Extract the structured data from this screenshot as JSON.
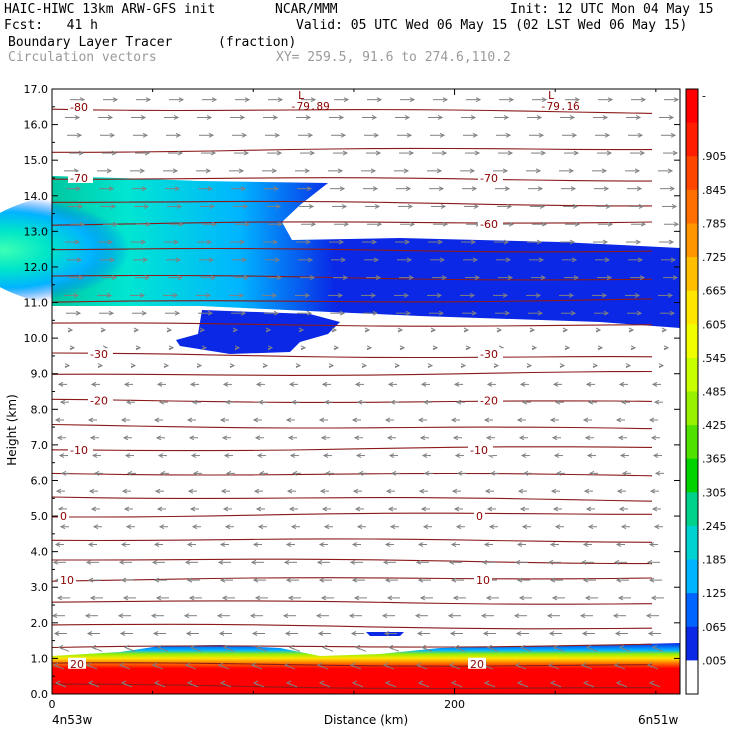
{
  "header": {
    "title": "HAIC-HIWC 13km ARW-GFS init",
    "org": "NCAR/MMM",
    "init": "Init: 12 UTC Mon 04 May 15",
    "fcst": "Fcst:   41 h",
    "valid": "Valid: 05 UTC Wed 06 May 15 (02 LST Wed 06 May 15)",
    "field": "Boundary Layer Tracer",
    "units": "(fraction)",
    "vectors": "Circulation vectors",
    "xy": "XY= 259.5, 91.6 to 274.6,110.2"
  },
  "chart_data": {
    "type": "heatmap",
    "title": "Boundary Layer Tracer",
    "xlabel": "Distance (km)",
    "ylabel": "Height (km)",
    "xlim": [
      0,
      312
    ],
    "ylim": [
      0,
      17
    ],
    "xticks": [
      {
        "value": 0,
        "label": "0"
      },
      {
        "value": 200,
        "label": "200"
      }
    ],
    "x_endpoint_labels": {
      "left": "4n53w",
      "right": "6n51w"
    },
    "yticks": [
      "0.0",
      "1.0",
      "2.0",
      "3.0",
      "4.0",
      "5.0",
      "6.0",
      "7.0",
      "8.0",
      "9.0",
      "10.0",
      "11.0",
      "12.0",
      "13.0",
      "14.0",
      "15.0",
      "16.0",
      "17.0"
    ],
    "colorbar": {
      "labels": [
        "-",
        ".905",
        ".845",
        ".785",
        ".725",
        ".665",
        ".605",
        ".545",
        ".485",
        ".425",
        ".365",
        ".305",
        ".245",
        ".185",
        ".125",
        ".065",
        ".005"
      ],
      "colors": [
        "#ff0000",
        "#ff1e00",
        "#ff4600",
        "#ff6e00",
        "#ff9600",
        "#ffbe00",
        "#ffe600",
        "#f0ff00",
        "#c8ff00",
        "#96f000",
        "#50e100",
        "#00d200",
        "#00d28c",
        "#00d2d2",
        "#00b4ff",
        "#0064ff",
        "#0a28e6",
        "#ffffff"
      ]
    },
    "temperature_contours": [
      {
        "label": "-80",
        "height_km": 16.5
      },
      {
        "label": "-70",
        "height_km": 14.5
      },
      {
        "label": "-60",
        "height_km": 13.2
      },
      {
        "label": "-30",
        "height_km": 9.55
      },
      {
        "label": "-20",
        "height_km": 8.25
      },
      {
        "label": "-10",
        "height_km": 6.85
      },
      {
        "label": "0",
        "height_km": 5.0
      },
      {
        "label": "10",
        "height_km": 3.2
      },
      {
        "label": "20",
        "height_km": 0.85
      }
    ],
    "lows": [
      {
        "marker": "L",
        "value": "-79.89"
      },
      {
        "marker": "L",
        "value": "-79.16"
      }
    ]
  }
}
